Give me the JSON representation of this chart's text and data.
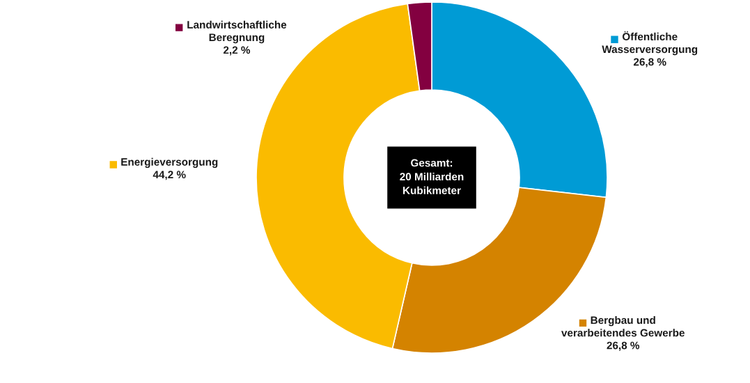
{
  "chart_data": {
    "type": "donut",
    "categories": [
      "Öffentliche\nWasserversorgung",
      "Bergbau und\nverarbeitendes Gewerbe",
      "Energieversorgung",
      "Landwirtschaftliche\nBeregnung"
    ],
    "values": [
      26.8,
      26.8,
      44.2,
      2.2
    ],
    "value_labels": [
      "26,8 %",
      "26,8 %",
      "44,2 %",
      "2,2 %"
    ],
    "colors": [
      "#009bd5",
      "#d48300",
      "#fabb00",
      "#830040"
    ],
    "legend": "bottom left",
    "annotations": [
      "Gesamt:\n20 Milliarden\nKubikmeter"
    ]
  }
}
